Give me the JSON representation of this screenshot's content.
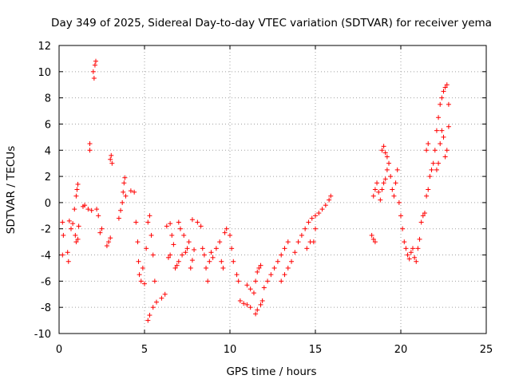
{
  "chart_data": {
    "type": "scatter",
    "title": "Day 349 of 2025, Sidereal Day-to-day VTEC variation (SDTVAR) for receiver yema",
    "xlabel": "GPS time / hours",
    "ylabel": "SDTVAR / TECUs",
    "xlim": [
      0,
      25
    ],
    "ylim": [
      -10,
      12
    ],
    "xticks": [
      0,
      5,
      10,
      15,
      20,
      25
    ],
    "yticks": [
      -10,
      -8,
      -6,
      -4,
      -2,
      0,
      2,
      4,
      6,
      8,
      10,
      12
    ],
    "grid": true,
    "marker": "+",
    "marker_color": "#ff0000",
    "series": [
      {
        "name": "SDTVAR",
        "points": [
          [
            0.2,
            -1.5
          ],
          [
            0.25,
            -2.5
          ],
          [
            0.2,
            -4.0
          ],
          [
            0.5,
            -3.8
          ],
          [
            0.55,
            -4.5
          ],
          [
            0.6,
            -1.4
          ],
          [
            0.7,
            -2.0
          ],
          [
            0.8,
            -1.6
          ],
          [
            0.9,
            -0.5
          ],
          [
            1.0,
            0.5
          ],
          [
            1.05,
            1.0
          ],
          [
            1.1,
            1.4
          ],
          [
            0.95,
            -2.5
          ],
          [
            1.0,
            -3.0
          ],
          [
            1.1,
            -2.8
          ],
          [
            1.15,
            -1.8
          ],
          [
            1.4,
            -0.3
          ],
          [
            1.5,
            -0.2
          ],
          [
            1.7,
            -0.5
          ],
          [
            1.8,
            4.5
          ],
          [
            1.8,
            4.0
          ],
          [
            1.9,
            -0.6
          ],
          [
            2.0,
            10.0
          ],
          [
            2.05,
            9.5
          ],
          [
            2.1,
            10.5
          ],
          [
            2.15,
            10.8
          ],
          [
            2.2,
            -0.5
          ],
          [
            2.3,
            -1.0
          ],
          [
            2.4,
            -2.3
          ],
          [
            2.5,
            -2.0
          ],
          [
            2.8,
            -3.3
          ],
          [
            2.9,
            -3.0
          ],
          [
            3.0,
            -2.7
          ],
          [
            3.0,
            3.3
          ],
          [
            3.05,
            3.6
          ],
          [
            3.1,
            3.0
          ],
          [
            3.5,
            -1.2
          ],
          [
            3.6,
            -0.6
          ],
          [
            3.7,
            0.0
          ],
          [
            3.75,
            0.8
          ],
          [
            3.8,
            1.5
          ],
          [
            3.85,
            1.9
          ],
          [
            3.9,
            0.5
          ],
          [
            4.2,
            0.9
          ],
          [
            4.4,
            0.8
          ],
          [
            4.5,
            -1.5
          ],
          [
            4.6,
            -3.0
          ],
          [
            4.65,
            -4.5
          ],
          [
            4.7,
            -5.5
          ],
          [
            4.8,
            -6.0
          ],
          [
            4.9,
            -5.0
          ],
          [
            5.0,
            -6.2
          ],
          [
            5.1,
            -3.5
          ],
          [
            5.2,
            -1.5
          ],
          [
            5.3,
            -1.0
          ],
          [
            5.4,
            -2.5
          ],
          [
            5.5,
            -4.0
          ],
          [
            5.6,
            -6.0
          ],
          [
            5.2,
            -9.0
          ],
          [
            5.3,
            -8.6
          ],
          [
            5.5,
            -8.0
          ],
          [
            5.7,
            -7.6
          ],
          [
            6.0,
            -7.3
          ],
          [
            6.2,
            -7.0
          ],
          [
            6.4,
            -4.2
          ],
          [
            6.5,
            -4.0
          ],
          [
            6.3,
            -1.8
          ],
          [
            6.5,
            -1.6
          ],
          [
            6.6,
            -2.5
          ],
          [
            6.7,
            -3.2
          ],
          [
            6.8,
            -5.0
          ],
          [
            6.9,
            -4.8
          ],
          [
            7.0,
            -4.5
          ],
          [
            7.2,
            -4.0
          ],
          [
            7.4,
            -3.8
          ],
          [
            7.1,
            -2.0
          ],
          [
            7.3,
            -2.5
          ],
          [
            7.5,
            -3.5
          ],
          [
            7.6,
            -3.0
          ],
          [
            7.7,
            -5.0
          ],
          [
            7.8,
            -4.4
          ],
          [
            7.9,
            -3.6
          ],
          [
            7.0,
            -1.5
          ],
          [
            7.8,
            -1.3
          ],
          [
            8.1,
            -1.5
          ],
          [
            8.3,
            -1.8
          ],
          [
            8.4,
            -3.5
          ],
          [
            8.5,
            -4.0
          ],
          [
            8.6,
            -5.0
          ],
          [
            8.7,
            -6.0
          ],
          [
            8.8,
            -4.5
          ],
          [
            8.9,
            -3.8
          ],
          [
            9.0,
            -4.2
          ],
          [
            9.2,
            -3.5
          ],
          [
            9.4,
            -3.0
          ],
          [
            9.5,
            -4.5
          ],
          [
            9.6,
            -5.0
          ],
          [
            9.7,
            -2.3
          ],
          [
            9.8,
            -2.0
          ],
          [
            10.0,
            -2.5
          ],
          [
            10.1,
            -3.5
          ],
          [
            10.2,
            -4.5
          ],
          [
            10.4,
            -5.5
          ],
          [
            10.5,
            -6.0
          ],
          [
            10.6,
            -7.5
          ],
          [
            10.8,
            -7.7
          ],
          [
            11.0,
            -7.8
          ],
          [
            11.2,
            -8.0
          ],
          [
            11.0,
            -6.3
          ],
          [
            11.2,
            -6.6
          ],
          [
            11.4,
            -6.9
          ],
          [
            11.5,
            -6.0
          ],
          [
            11.6,
            -5.3
          ],
          [
            11.7,
            -5.0
          ],
          [
            11.8,
            -4.8
          ],
          [
            11.5,
            -8.5
          ],
          [
            11.6,
            -8.2
          ],
          [
            11.8,
            -7.8
          ],
          [
            11.9,
            -7.5
          ],
          [
            12.0,
            -6.5
          ],
          [
            12.2,
            -6.0
          ],
          [
            12.4,
            -5.5
          ],
          [
            12.6,
            -5.0
          ],
          [
            12.8,
            -4.5
          ],
          [
            13.0,
            -4.0
          ],
          [
            13.2,
            -3.5
          ],
          [
            13.4,
            -3.0
          ],
          [
            13.0,
            -6.0
          ],
          [
            13.2,
            -5.5
          ],
          [
            13.4,
            -5.0
          ],
          [
            13.6,
            -4.5
          ],
          [
            13.8,
            -3.8
          ],
          [
            14.0,
            -3.0
          ],
          [
            14.2,
            -2.5
          ],
          [
            14.4,
            -2.0
          ],
          [
            14.6,
            -1.5
          ],
          [
            14.8,
            -1.2
          ],
          [
            15.0,
            -1.0
          ],
          [
            14.5,
            -3.5
          ],
          [
            14.7,
            -3.0
          ],
          [
            15.0,
            -2.0
          ],
          [
            15.2,
            -0.8
          ],
          [
            15.4,
            -0.5
          ],
          [
            15.6,
            -0.2
          ],
          [
            15.8,
            0.2
          ],
          [
            15.9,
            0.5
          ],
          [
            14.9,
            -3.0
          ],
          [
            18.3,
            -2.5
          ],
          [
            18.4,
            -2.8
          ],
          [
            18.5,
            -3.0
          ],
          [
            18.4,
            0.5
          ],
          [
            18.5,
            1.0
          ],
          [
            18.6,
            1.5
          ],
          [
            18.7,
            0.8
          ],
          [
            18.8,
            0.2
          ],
          [
            18.9,
            1.0
          ],
          [
            19.0,
            1.5
          ],
          [
            19.1,
            1.8
          ],
          [
            19.2,
            2.5
          ],
          [
            18.9,
            4.0
          ],
          [
            19.0,
            4.3
          ],
          [
            19.1,
            3.8
          ],
          [
            19.2,
            3.5
          ],
          [
            19.3,
            3.0
          ],
          [
            19.4,
            2.0
          ],
          [
            19.5,
            1.0
          ],
          [
            19.6,
            0.5
          ],
          [
            19.7,
            1.5
          ],
          [
            19.8,
            2.5
          ],
          [
            19.9,
            0.0
          ],
          [
            20.0,
            -1.0
          ],
          [
            20.1,
            -2.0
          ],
          [
            20.2,
            -3.0
          ],
          [
            20.3,
            -3.5
          ],
          [
            20.4,
            -4.0
          ],
          [
            20.5,
            -4.3
          ],
          [
            20.6,
            -3.8
          ],
          [
            20.7,
            -3.5
          ],
          [
            20.8,
            -4.2
          ],
          [
            20.9,
            -4.5
          ],
          [
            21.0,
            -3.5
          ],
          [
            21.1,
            -2.8
          ],
          [
            21.2,
            -1.5
          ],
          [
            21.3,
            -1.0
          ],
          [
            21.4,
            -0.8
          ],
          [
            21.5,
            0.5
          ],
          [
            21.6,
            1.0
          ],
          [
            21.7,
            2.0
          ],
          [
            21.5,
            4.0
          ],
          [
            21.6,
            4.5
          ],
          [
            21.8,
            2.5
          ],
          [
            21.9,
            3.0
          ],
          [
            22.0,
            4.0
          ],
          [
            22.1,
            5.5
          ],
          [
            22.2,
            6.5
          ],
          [
            22.3,
            7.5
          ],
          [
            22.4,
            8.0
          ],
          [
            22.5,
            8.5
          ],
          [
            22.6,
            8.8
          ],
          [
            22.7,
            9.0
          ],
          [
            22.8,
            7.5
          ],
          [
            22.8,
            5.8
          ],
          [
            22.7,
            4.0
          ],
          [
            22.6,
            3.5
          ],
          [
            22.5,
            5.0
          ],
          [
            22.4,
            5.5
          ],
          [
            22.3,
            4.5
          ],
          [
            22.2,
            3.0
          ],
          [
            22.1,
            2.5
          ]
        ]
      }
    ]
  }
}
